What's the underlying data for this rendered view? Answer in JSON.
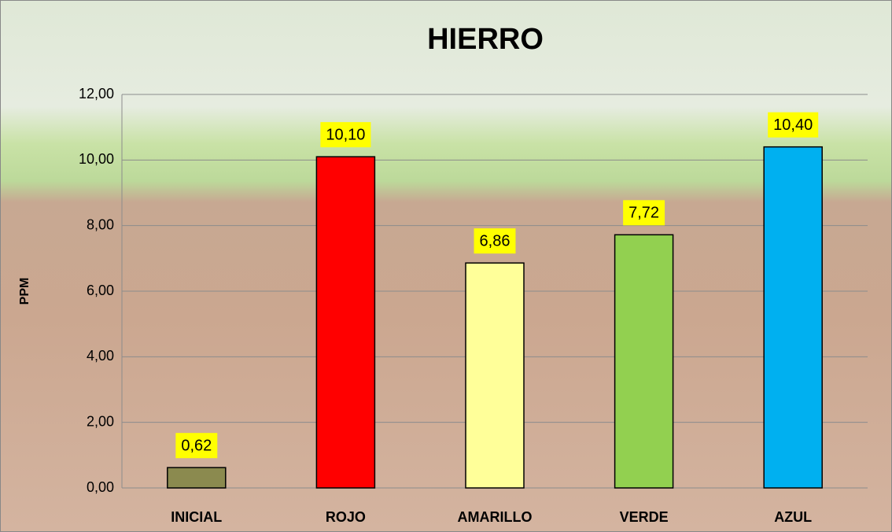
{
  "chart_data": {
    "type": "bar",
    "title": "HIERRO",
    "y_label": "PPM",
    "categories": [
      "INICIAL",
      "ROJO",
      "AMARILLO",
      "VERDE",
      "AZUL"
    ],
    "values": [
      0.62,
      10.1,
      6.86,
      7.72,
      10.4
    ],
    "value_labels": [
      "0,62",
      "10,10",
      "6,86",
      "7,72",
      "10,40"
    ],
    "colors": [
      "#8b8a4f",
      "#ff0000",
      "#ffff99",
      "#92d050",
      "#00b0f0"
    ],
    "ylim": [
      0,
      12
    ],
    "yticks": [
      {
        "value": 0,
        "label": "0,00"
      },
      {
        "value": 2,
        "label": "2,00"
      },
      {
        "value": 4,
        "label": "4,00"
      },
      {
        "value": 6,
        "label": "6,00"
      },
      {
        "value": 8,
        "label": "8,00"
      },
      {
        "value": 10,
        "label": "10,00"
      },
      {
        "value": 12,
        "label": "12,00"
      }
    ],
    "grid": true
  }
}
